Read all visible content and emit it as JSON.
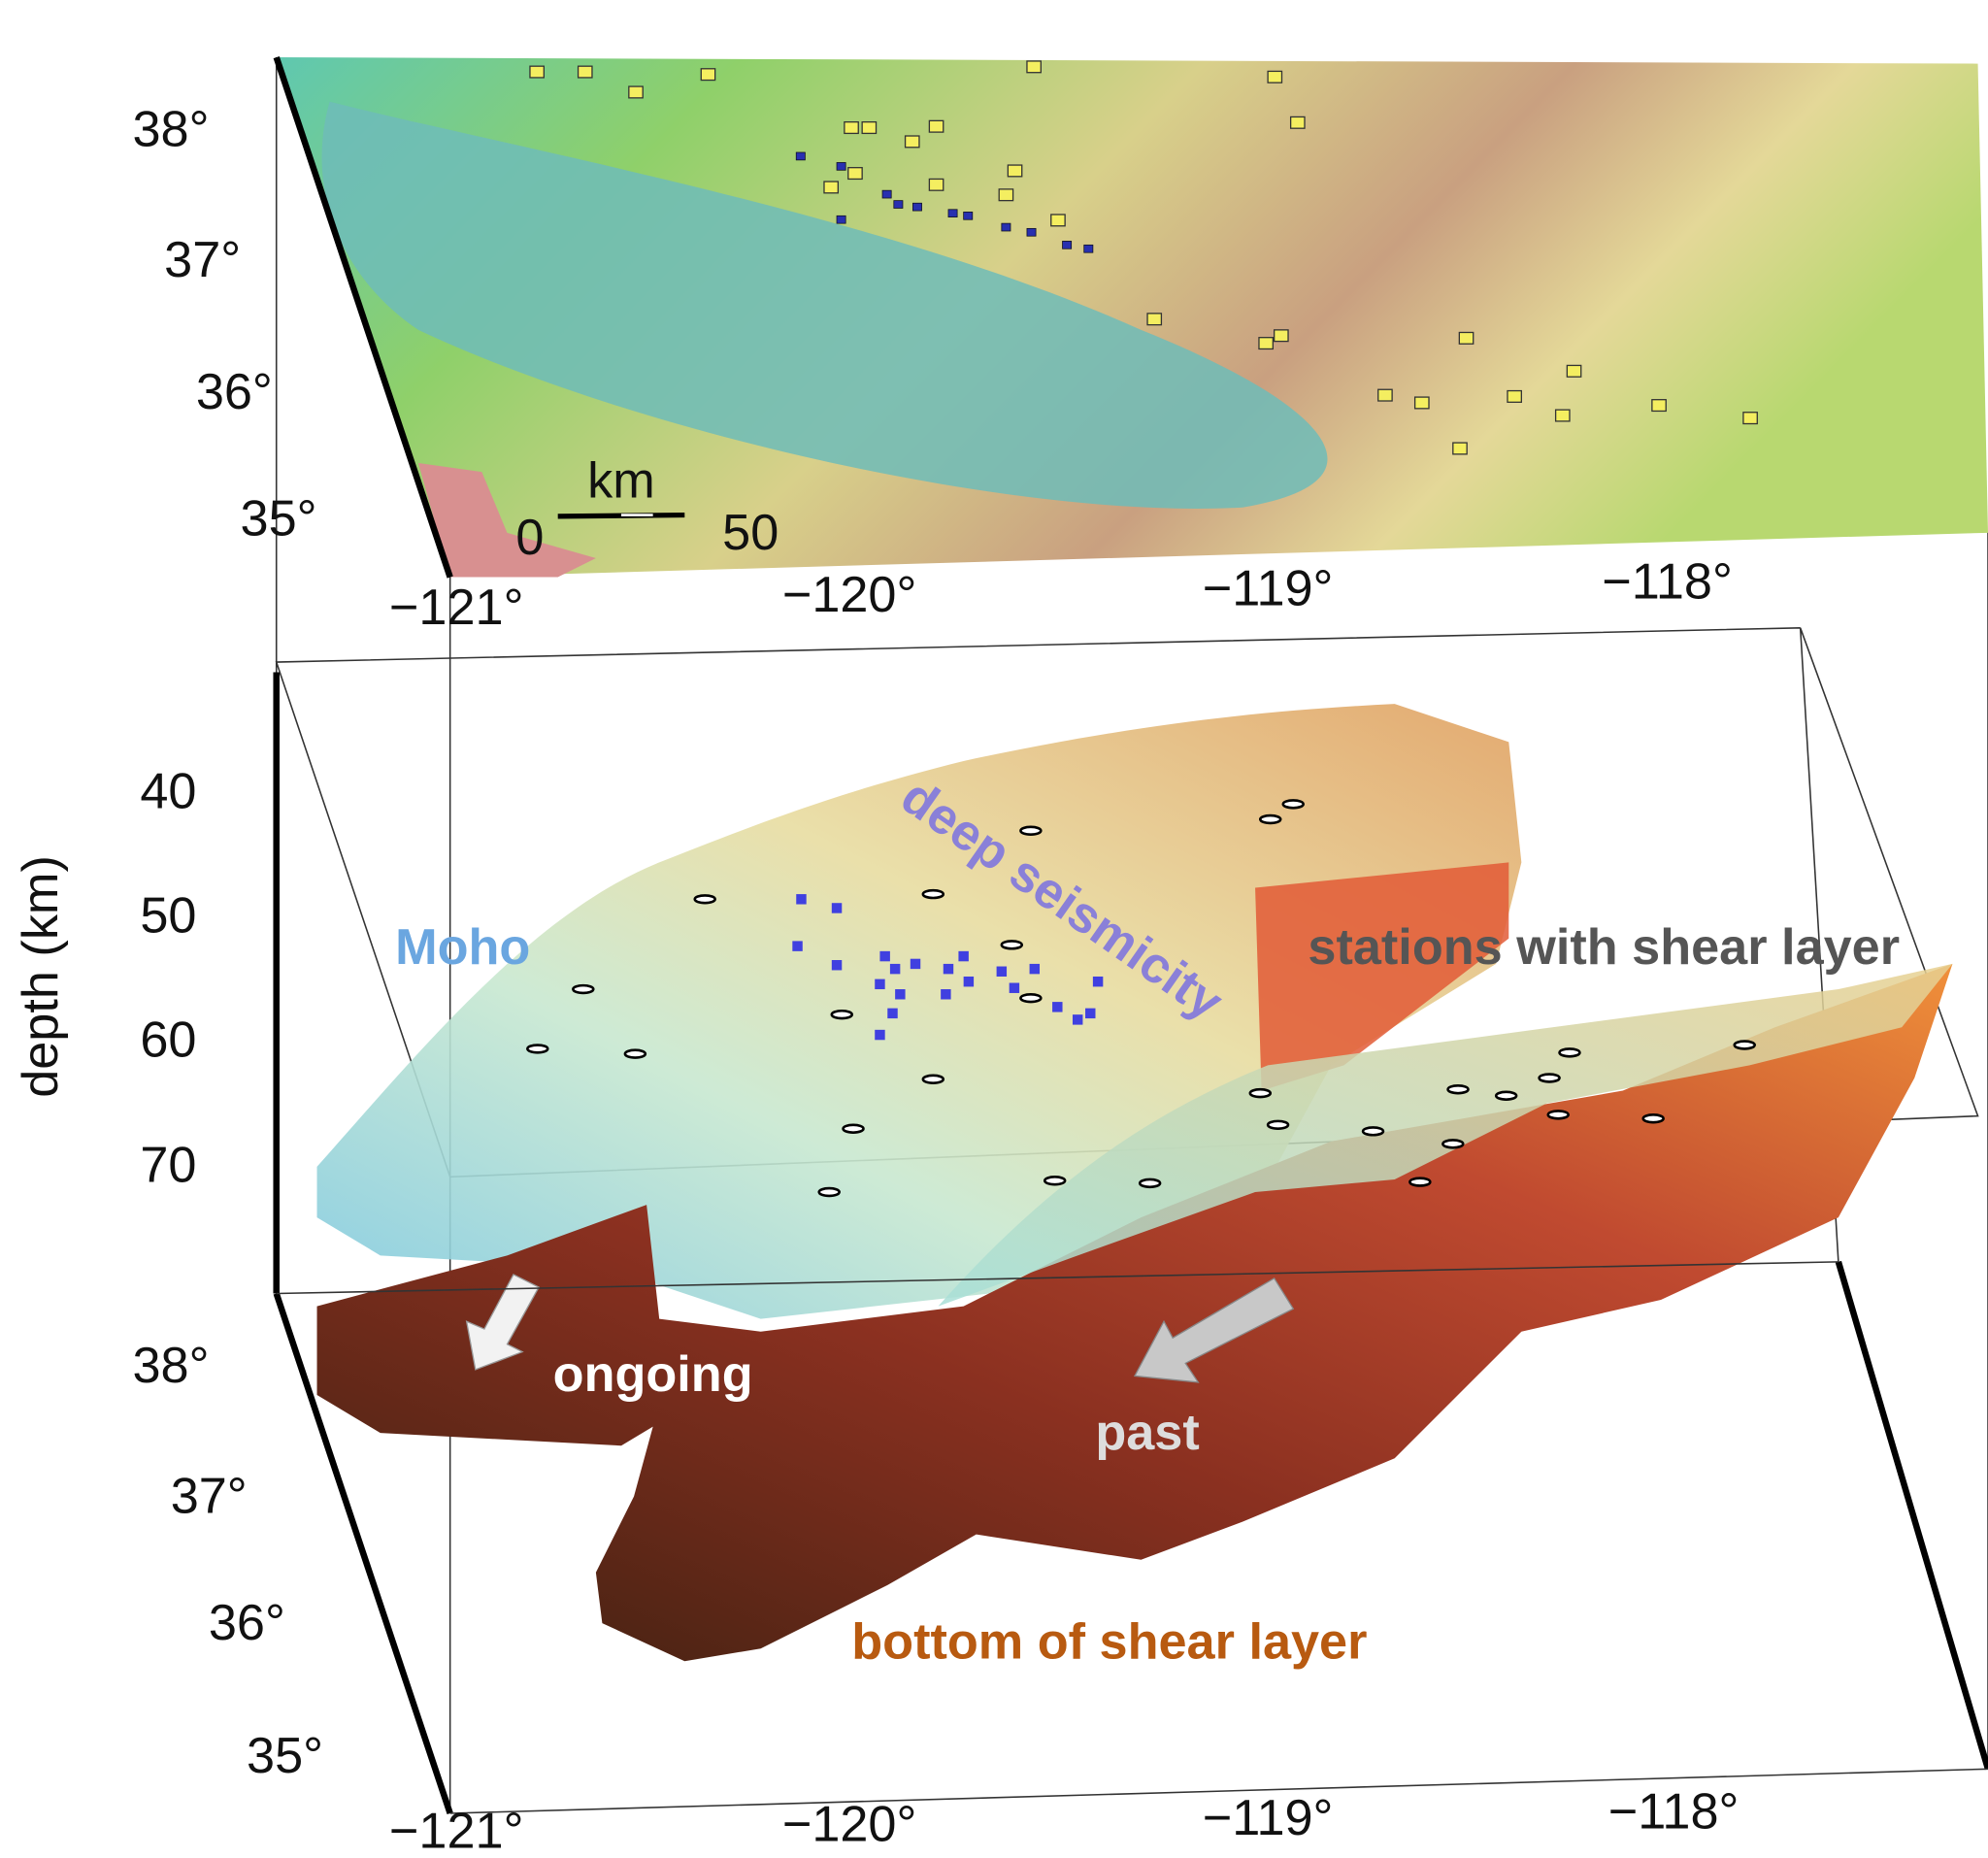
{
  "top_map": {
    "lat_labels": [
      "38°",
      "37°",
      "36°",
      "35°"
    ],
    "lon_labels": [
      "−121°",
      "−120°",
      "−119°",
      "−118°"
    ],
    "scale_bar": {
      "title": "km",
      "labels": [
        "0",
        "50"
      ]
    }
  },
  "block": {
    "axis_title": "depth (km)",
    "depth_labels": [
      "40",
      "50",
      "60",
      "70"
    ],
    "lat_labels": [
      "38°",
      "37°",
      "36°",
      "35°"
    ],
    "lon_labels": [
      "−121°",
      "−120°",
      "−119°",
      "−118°"
    ]
  },
  "annotations": {
    "moho": "Moho",
    "seismicity": "deep seismicity",
    "stations": "stations with shear layer",
    "ongoing": "ongoing",
    "past": "past",
    "bottom": "bottom of shear layer"
  }
}
